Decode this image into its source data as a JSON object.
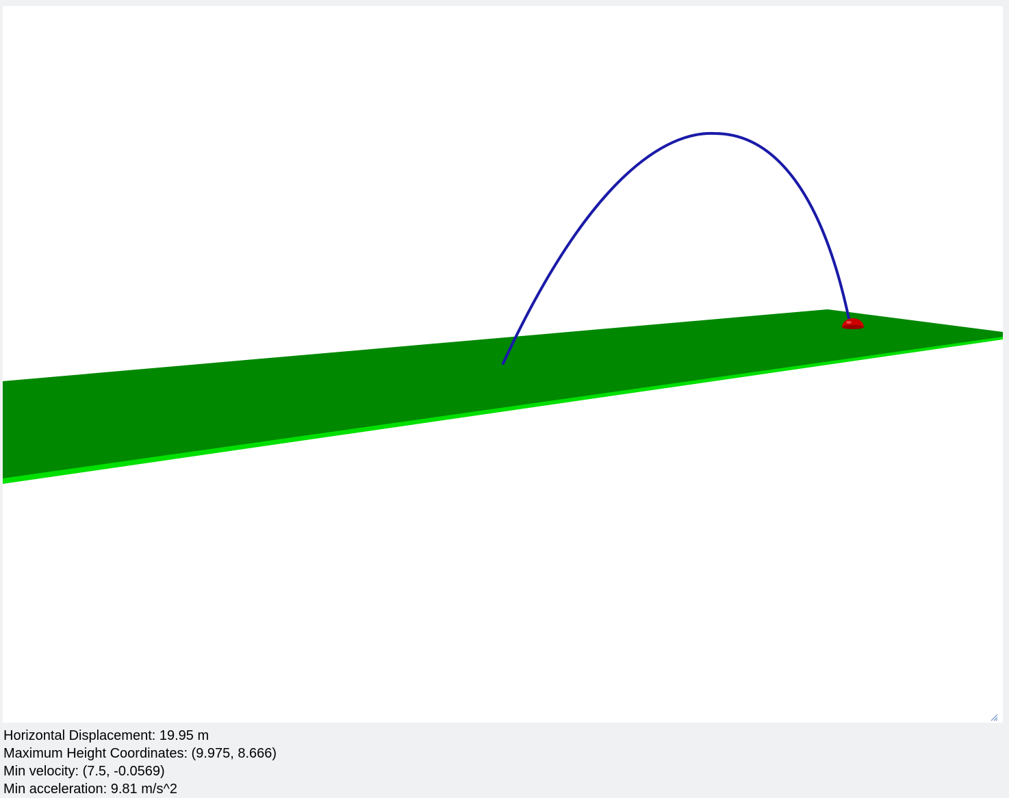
{
  "scene": {
    "ground_color": "#008800",
    "ground_edge_color": "#00e000",
    "trajectory_color": "#1a1aa8",
    "ball_color": "#cc0000",
    "background_color": "#ffffff"
  },
  "readout": {
    "horizontal_displacement": "Horizontal Displacement: 19.95 m",
    "max_height": "Maximum Height Coordinates: (9.975, 8.666)",
    "min_velocity": "Min velocity: (7.5, -0.0569)",
    "min_acceleration": "Min acceleration: 9.81 m/s^2"
  },
  "icons": {
    "resize": "resize-handle-icon"
  }
}
